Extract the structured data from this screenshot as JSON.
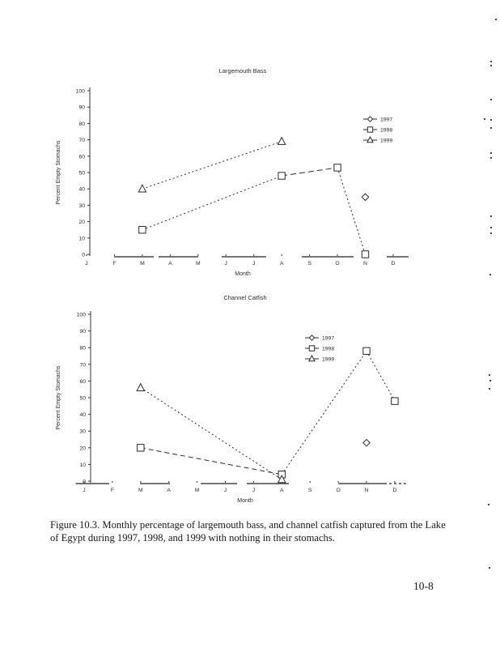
{
  "page": {
    "caption_line1": "Figure 10.3.  Monthly percentage of largemouth bass, and channel catfish captured from the Lake",
    "caption_line2": "of Egypt during 1997, 1998, and 1999 with nothing in their stomachs.",
    "page_number": "10-8"
  },
  "chart_data": [
    {
      "type": "line",
      "title": "Largemouth Bass",
      "xlabel": "Month",
      "ylabel": "Percent Empty Stomachs",
      "ylim": [
        0,
        100
      ],
      "yticks": [
        0,
        10,
        20,
        30,
        40,
        50,
        60,
        70,
        80,
        90,
        100
      ],
      "categories": [
        "J",
        "F",
        "M",
        "A",
        "M",
        "J",
        "J",
        "A",
        "S",
        "O",
        "N",
        "D"
      ],
      "legend_position": "right-inside",
      "grid": false,
      "series": [
        {
          "name": "1997",
          "marker": "diamond",
          "line": false,
          "points": [
            [
              10,
              35
            ]
          ],
          "dashes": []
        },
        {
          "name": "1998",
          "marker": "square",
          "line": true,
          "points": [
            [
              2,
              15
            ],
            [
              7,
              48
            ],
            [
              9,
              53
            ],
            [
              10,
              0
            ]
          ],
          "dashes": [
            "2,3",
            "7,4",
            "2,3"
          ]
        },
        {
          "name": "1999",
          "marker": "triangle",
          "line": true,
          "points": [
            [
              2,
              40
            ],
            [
              7,
              69
            ]
          ],
          "dashes": [
            "2,3"
          ]
        }
      ],
      "zero_segments": [
        [
          0.99,
          2.41
        ],
        [
          2.58,
          4.01
        ],
        [
          4.85,
          6.44
        ],
        [
          7.72,
          9.58
        ],
        [
          10.77,
          11.55
        ]
      ],
      "zero_segments_dashed": []
    },
    {
      "type": "line",
      "title": "Channel Catfish",
      "xlabel": "Month",
      "ylabel": "Percent Empty Stomachs",
      "ylim": [
        0,
        100
      ],
      "yticks": [
        0,
        10,
        20,
        30,
        40,
        50,
        60,
        70,
        80,
        90,
        100
      ],
      "categories": [
        "J",
        "F",
        "M",
        "A",
        "M",
        "J",
        "J",
        "A",
        "S",
        "O",
        "N",
        "D"
      ],
      "legend_position": "top-center",
      "grid": false,
      "series": [
        {
          "name": "1997",
          "marker": "diamond",
          "line": false,
          "points": [
            [
              10,
              23
            ]
          ],
          "dashes": []
        },
        {
          "name": "1998",
          "marker": "square",
          "line": true,
          "points": [
            [
              2,
              20
            ],
            [
              7,
              4
            ],
            [
              10,
              78
            ],
            [
              11,
              48
            ]
          ],
          "dashes": [
            "6,4",
            "2,3",
            "2,3"
          ]
        },
        {
          "name": "1999",
          "marker": "triangle",
          "line": true,
          "points": [
            [
              2,
              56
            ],
            [
              7,
              1
            ]
          ],
          "dashes": [
            "2,3"
          ]
        }
      ],
      "zero_segments": [
        [
          -0.3,
          0.89
        ],
        [
          1.98,
          3.04
        ],
        [
          4.13,
          5.42
        ],
        [
          5.76,
          7.25
        ],
        [
          9.0,
          10.63
        ]
      ],
      "zero_segments_dashed": [
        [
          10.63,
          11.4
        ]
      ]
    }
  ]
}
